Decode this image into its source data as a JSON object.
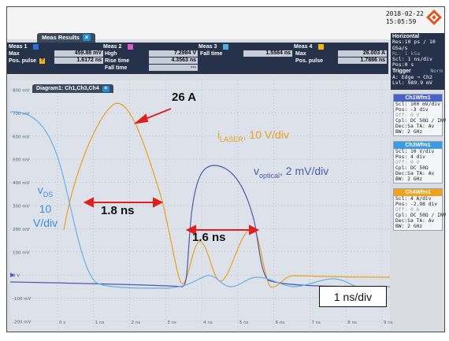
{
  "datetime": {
    "date": "2018-02-22",
    "time": "15:05:59"
  },
  "meas_results": {
    "tab_label": "Meas Results",
    "headers": [
      "Meas 1",
      "Meas 2",
      "Meas 3",
      "Meas 4"
    ],
    "swatch_colors": [
      "#2a6fd6",
      "#d65ac8",
      "#4ab0e8",
      "#f2b21a"
    ],
    "rows": [
      {
        "c1_label": "Max",
        "c1_value": "459.88 mV",
        "c2_label": "High",
        "c2_value": "7.2984 V",
        "c3_label": "Fall time",
        "c3_value": "1.5584 ns",
        "c4_label": "Max",
        "c4_value": "26.003 A"
      },
      {
        "c1_label": "Pos. pulse",
        "c1_value": "1.6172 ns",
        "c2_label": "Rise time",
        "c2_value": "4.3563 ns",
        "c3_label": "",
        "c3_value": "",
        "c4_label": "Pos. pulse",
        "c4_value": "1.7886 ns"
      },
      {
        "c1_label": "",
        "c1_value": "",
        "c2_label": "Fall time",
        "c2_value": "---",
        "c3_label": "",
        "c3_value": "",
        "c4_label": "",
        "c4_value": ""
      }
    ]
  },
  "horizontal": {
    "title": "Horizontal",
    "lines": [
      "Res:10 ps / 10 GSa/s",
      "RL: 1 kSa",
      "Scl: 1 ns/div",
      "Pos:0 s"
    ],
    "trigger_title": "Trigger",
    "trigger_mode": "Norm",
    "trigger_lines": [
      "A:  Edge  ¬ Ch2",
      "Lvl: 989.9 mV"
    ]
  },
  "diagram": {
    "tab_label": "Diagram1: Ch1,Ch3,Ch4",
    "y_ticks": [
      "800 mV",
      "700 mV",
      "600 mV",
      "500 mV",
      "400 mV",
      "300 mV",
      "200 mV",
      "100 mV",
      "0 V",
      "-100 mV",
      "-200 mV"
    ],
    "x_ticks": [
      "0 s",
      "1 ns",
      "2 ns",
      "3 ns",
      "4 ns",
      "5 ns",
      "6 ns",
      "7 ns",
      "8 ns",
      "9 ns"
    ]
  },
  "channels": [
    {
      "title": "Ch1Wfm1",
      "color": "#4a62c8",
      "lines": [
        "Scl: 100 mV/div",
        "Pos: -3 div",
        "Off: 0 V",
        "Cpl: DC 50Ω / INV",
        "Dec:Sa    TA: Av",
        "BW: 2 GHz"
      ]
    },
    {
      "title": "Ch3Wfm1",
      "color": "#3a9be0",
      "lines": [
        "Scl: 10 V/div",
        "Pos: 4 div",
        "Off: 0 V",
        "Cpl: DC 50Ω",
        "Dec:Sa    TA: Av",
        "BW: 2 GHz"
      ]
    },
    {
      "title": "Ch4Wfm1",
      "color": "#f0a21a",
      "lines": [
        "Scl: 4 A/div",
        "Pos: -2.98 div",
        "Off: 0 A",
        "Cpl: DC 50Ω / INV",
        "Dec:Sa    TA: Av",
        "BW: 2 GHz"
      ]
    }
  ],
  "annotations": {
    "peak_current": "26 A",
    "ilaser_main": "i",
    "ilaser_sub": "LASER",
    "ilaser_scale": ", 10 V/div",
    "voptical_main": "v",
    "voptical_sub": "optical",
    "voptical_scale": ", 2 mV/div",
    "vds_main": "v",
    "vds_sub": "DS",
    "vds_line2": "10",
    "vds_line3": "V/div",
    "width_1": "1.8 ns",
    "width_2": "1.6 ns",
    "timebase": "1 ns/div"
  },
  "colors": {
    "ilaser": "#e8a21a",
    "voptical": "#4c5ba8",
    "vds": "#3a8ed6",
    "arrows": "#e01f1f"
  }
}
